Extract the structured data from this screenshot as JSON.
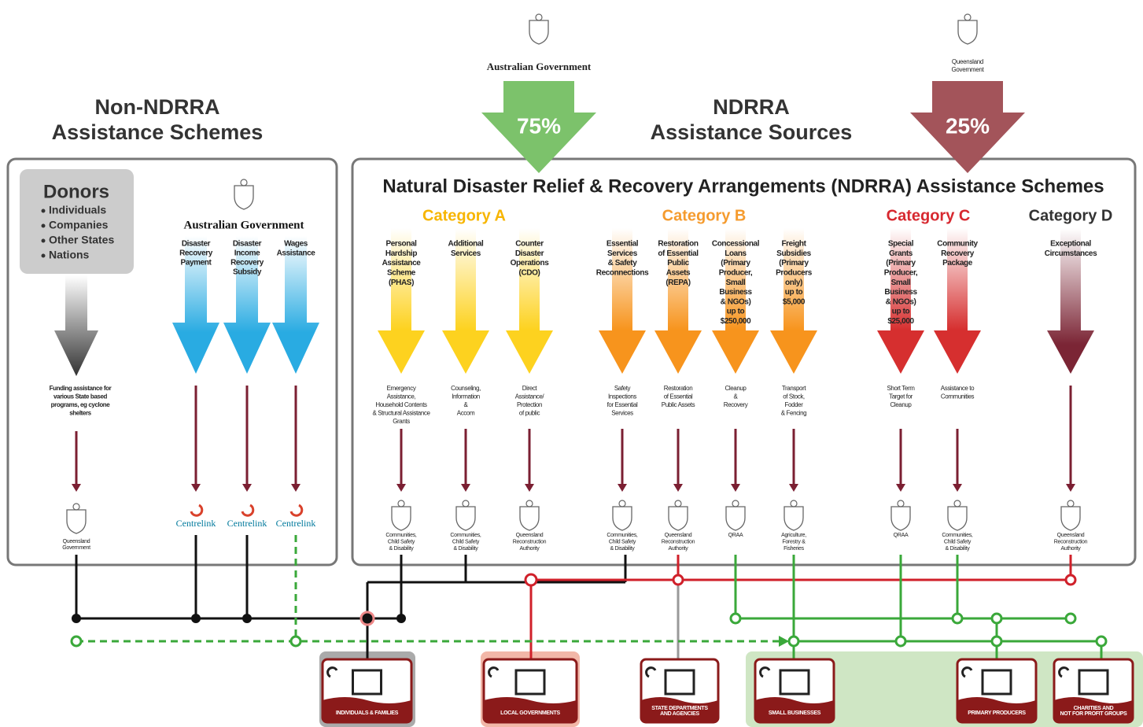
{
  "titles": {
    "non_ndrra": [
      "Non-NDRRA",
      "Assistance Schemes"
    ],
    "ndrra": [
      "NDRRA",
      "Assistance Sources"
    ]
  },
  "funding": [
    {
      "label": [
        "Australian Government"
      ],
      "share": "75%"
    },
    {
      "label": [
        "Queensland",
        "Government"
      ],
      "share": "25%"
    }
  ],
  "panel_title": "Natural Disaster Relief & Recovery Arrangements (NDRRA) Assistance Schemes",
  "donors": {
    "title": "Donors",
    "items": [
      "Individuals",
      "Companies",
      "Other States",
      "Nations"
    ],
    "outcome": [
      "Funding assistance for",
      "various State based",
      "programs, eg cyclone",
      "shelters"
    ],
    "agency": [
      "Queensland",
      "Government"
    ]
  },
  "non_ndrra": {
    "government": "Australian Government",
    "schemes": [
      {
        "name": [
          "Disaster",
          "Recovery",
          "Payment"
        ],
        "agency": "Centrelink"
      },
      {
        "name": [
          "Disaster",
          "Income",
          "Recovery",
          "Subsidy"
        ],
        "agency": "Centrelink"
      },
      {
        "name": [
          "Wages",
          "Assistance"
        ],
        "agency": "Centrelink"
      }
    ]
  },
  "categories": [
    {
      "name": "Category A",
      "schemes": [
        {
          "name": [
            "Personal",
            "Hardship",
            "Assistance",
            "Scheme",
            "(PHAS)"
          ],
          "outcome": [
            "Emergency",
            "Assistance,",
            "Household Contents",
            "& Structural Assistance",
            "Grants"
          ],
          "agency": [
            "Communities,",
            "Child Safety",
            "& Disability"
          ]
        },
        {
          "name": [
            "Additional",
            "Services"
          ],
          "outcome": [
            "Counseling,",
            "Information",
            "&",
            "Accom"
          ],
          "agency": [
            "Communities,",
            "Child Safety",
            "& Disability"
          ]
        },
        {
          "name": [
            "Counter",
            "Disaster",
            "Operations",
            "(CDO)"
          ],
          "outcome": [
            "Direct",
            "Assistance/",
            "Protection",
            "of public"
          ],
          "agency": [
            "Queensland",
            "Reconstruction",
            "Authority"
          ]
        }
      ]
    },
    {
      "name": "Category B",
      "schemes": [
        {
          "name": [
            "Essential",
            "Services",
            "& Safety",
            "Reconnections"
          ],
          "outcome": [
            "Safety",
            "Inspections",
            "for Essential",
            "Services"
          ],
          "agency": [
            "Communities,",
            "Child Safety",
            "& Disability"
          ]
        },
        {
          "name": [
            "Restoration",
            "of Essential",
            "Public",
            "Assets",
            "(REPA)"
          ],
          "outcome": [
            "Restoration",
            "of Essential",
            "Public Assets"
          ],
          "agency": [
            "Queensland",
            "Reconstruction",
            "Authority"
          ]
        },
        {
          "name": [
            "Concessional",
            "Loans",
            "(Primary",
            "Producer,",
            "Small",
            "Business",
            "& NGOs)",
            "up to",
            "$250,000"
          ],
          "outcome": [
            "Cleanup",
            "&",
            "Recovery"
          ],
          "agency": [
            "QRAA"
          ]
        },
        {
          "name": [
            "Freight",
            "Subsidies",
            "(Primary",
            "Producers",
            "only)",
            "up to",
            "$5,000"
          ],
          "outcome": [
            "Transport",
            "of Stock,",
            "Fodder",
            "& Fencing"
          ],
          "agency": [
            "Agriculture,",
            "Forestry &",
            "Fisheries"
          ]
        }
      ]
    },
    {
      "name": "Category C",
      "schemes": [
        {
          "name": [
            "Special",
            "Grants",
            "(Primary",
            "Producer,",
            "Small",
            "Business",
            "& NGOs)",
            "up to",
            "$25,000"
          ],
          "outcome": [
            "Short Term",
            "Target for",
            "Cleanup"
          ],
          "agency": [
            "QRAA"
          ]
        },
        {
          "name": [
            "Community",
            "Recovery",
            "Package"
          ],
          "outcome": [
            "Assistance to",
            "Communities"
          ],
          "agency": [
            "Communities,",
            "Child Safety",
            "& Disability"
          ]
        }
      ]
    },
    {
      "name": "Category D",
      "schemes": [
        {
          "name": [
            "Exceptional",
            "Circumstances"
          ],
          "agency": [
            "Queensland",
            "Reconstruction",
            "Authority"
          ]
        }
      ]
    }
  ],
  "recipients": [
    [
      "INDIVIDUALS & FAMILIES"
    ],
    [
      "LOCAL GOVERNMENTS"
    ],
    [
      "STATE DEPARTMENTS",
      "AND AGENCIES"
    ],
    [
      "SMALL BUSINESSES"
    ],
    [
      "PRIMARY PRODUCERS"
    ],
    [
      "CHARITIES AND",
      "NOT FOR PROFIT GROUPS"
    ]
  ]
}
